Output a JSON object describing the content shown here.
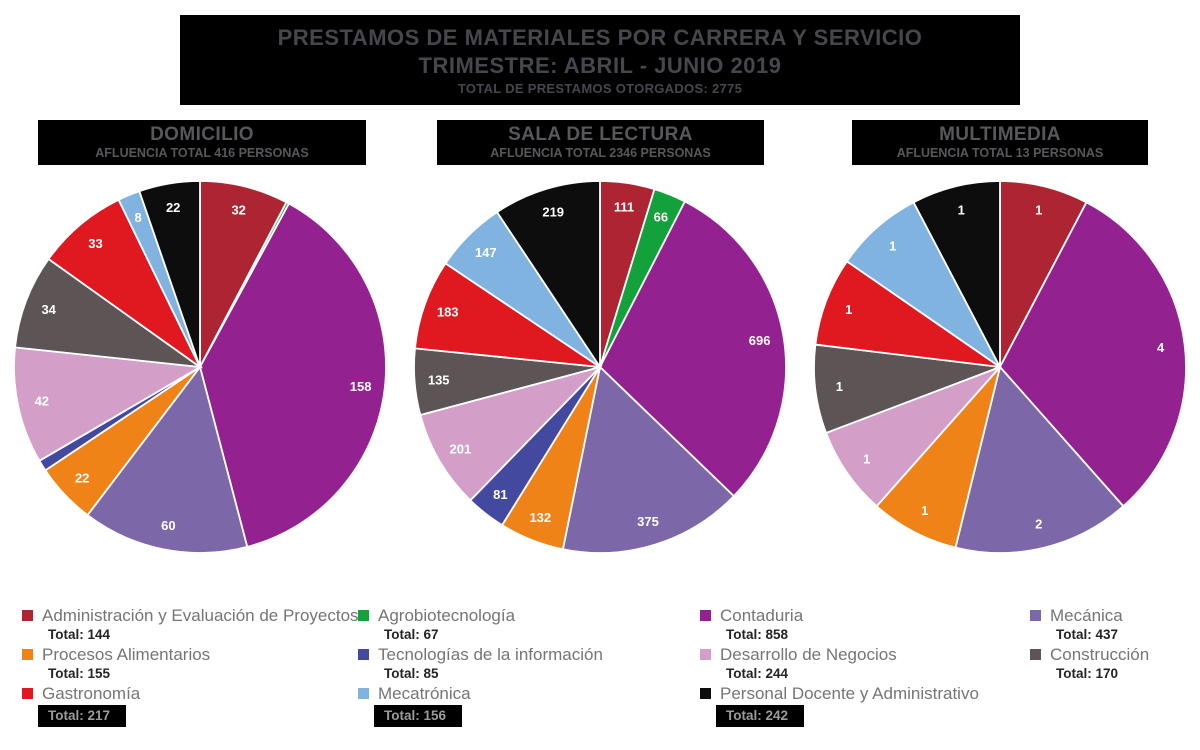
{
  "title": {
    "line1": "PRESTAMOS DE MATERIALES POR CARRERA Y SERVICIO",
    "line2": "TRIMESTRE: ABRIL - JUNIO 2019",
    "line3": "TOTAL DE PRESTAMOS OTORGADOS: 2775"
  },
  "colors": {
    "background": "#FFFFFF",
    "header_box": "#000000",
    "header_text": "#58585C",
    "title_text": "#46474D",
    "slice_label_text": "#FFFFFF"
  },
  "categories": [
    {
      "name": "Administración y Evaluación de Proyectos",
      "total": 144,
      "color": "#AD2432"
    },
    {
      "name": "Agrobiotecnología",
      "total": 67,
      "color": "#12A13B"
    },
    {
      "name": "Contaduria",
      "total": 858,
      "color": "#93218F"
    },
    {
      "name": "Mecánica",
      "total": 437,
      "color": "#7C68A9"
    },
    {
      "name": "Procesos Alimentarios",
      "total": 155,
      "color": "#EF8318"
    },
    {
      "name": "Tecnologías de la información",
      "total": 85,
      "color": "#43499E"
    },
    {
      "name": "Desarrollo de Negocios",
      "total": 244,
      "color": "#D39FC9"
    },
    {
      "name": "Construcción",
      "total": 170,
      "color": "#5C5455"
    },
    {
      "name": "Gastronomía",
      "total": 217,
      "color": "#E0181F"
    },
    {
      "name": "Mecatrónica",
      "total": 156,
      "color": "#80B3DF"
    },
    {
      "name": "Personal Docente y Administrativo",
      "total": 242,
      "color": "#0D0D0D"
    }
  ],
  "chart_data": [
    {
      "type": "pie",
      "title": "DOMICILIO",
      "subtitle": "AFLUENCIA TOTAL 416 PERSONAS",
      "total": 416,
      "categories": [
        "Administración y Evaluación de Proyectos",
        "Agrobiotecnología",
        "Contaduria",
        "Mecánica",
        "Procesos Alimentarios",
        "Tecnologías de la información",
        "Desarrollo de Negocios",
        "Construcción",
        "Gastronomía",
        "Mecatrónica",
        "Personal Docente y Administrativo"
      ],
      "values": [
        32,
        1,
        158,
        60,
        22,
        4,
        42,
        34,
        33,
        8,
        22
      ],
      "layout": {
        "start_angle_deg": 0,
        "direction": "clockwise",
        "labels": "value-on-slice",
        "min_label_angle_deg": 5
      }
    },
    {
      "type": "pie",
      "title": "SALA DE LECTURA",
      "subtitle": "AFLUENCIA TOTAL 2346 PERSONAS",
      "total": 2346,
      "categories": [
        "Administración y Evaluación de Proyectos",
        "Agrobiotecnología",
        "Contaduria",
        "Mecánica",
        "Procesos Alimentarios",
        "Tecnologías de la información",
        "Desarrollo de Negocios",
        "Construcción",
        "Gastronomía",
        "Mecatrónica",
        "Personal Docente y Administrativo"
      ],
      "values": [
        111,
        66,
        696,
        375,
        132,
        81,
        201,
        135,
        183,
        147,
        219
      ],
      "layout": {
        "start_angle_deg": 0,
        "direction": "clockwise",
        "labels": "value-on-slice",
        "min_label_angle_deg": 5
      }
    },
    {
      "type": "pie",
      "title": "MULTIMEDIA",
      "subtitle": "AFLUENCIA TOTAL 13 PERSONAS",
      "total": 13,
      "categories": [
        "Administración y Evaluación de Proyectos",
        "Agrobiotecnología",
        "Contaduria",
        "Mecánica",
        "Procesos Alimentarios",
        "Tecnologías de la información",
        "Desarrollo de Negocios",
        "Construcción",
        "Gastronomía",
        "Mecatrónica",
        "Personal Docente y Administrativo"
      ],
      "values": [
        1,
        0,
        4,
        2,
        1,
        0,
        1,
        1,
        1,
        1,
        1
      ],
      "layout": {
        "start_angle_deg": 0,
        "direction": "clockwise",
        "labels": "value-on-slice",
        "min_label_angle_deg": 5
      }
    }
  ],
  "legend": {
    "total_prefix": "Total:",
    "columns": [
      {
        "entries": [
          {
            "cat": 0,
            "boxed": false
          },
          {
            "cat": 4,
            "boxed": false
          },
          {
            "cat": 8,
            "boxed": true
          }
        ]
      },
      {
        "entries": [
          {
            "cat": 1,
            "boxed": false
          },
          {
            "cat": 5,
            "boxed": false
          },
          {
            "cat": 9,
            "boxed": true
          }
        ]
      },
      {
        "entries": [
          {
            "cat": 2,
            "boxed": false
          },
          {
            "cat": 6,
            "boxed": false
          },
          {
            "cat": 10,
            "boxed": true
          }
        ]
      },
      {
        "entries": [
          {
            "cat": 3,
            "boxed": false
          },
          {
            "cat": 7,
            "boxed": false
          }
        ]
      }
    ]
  }
}
